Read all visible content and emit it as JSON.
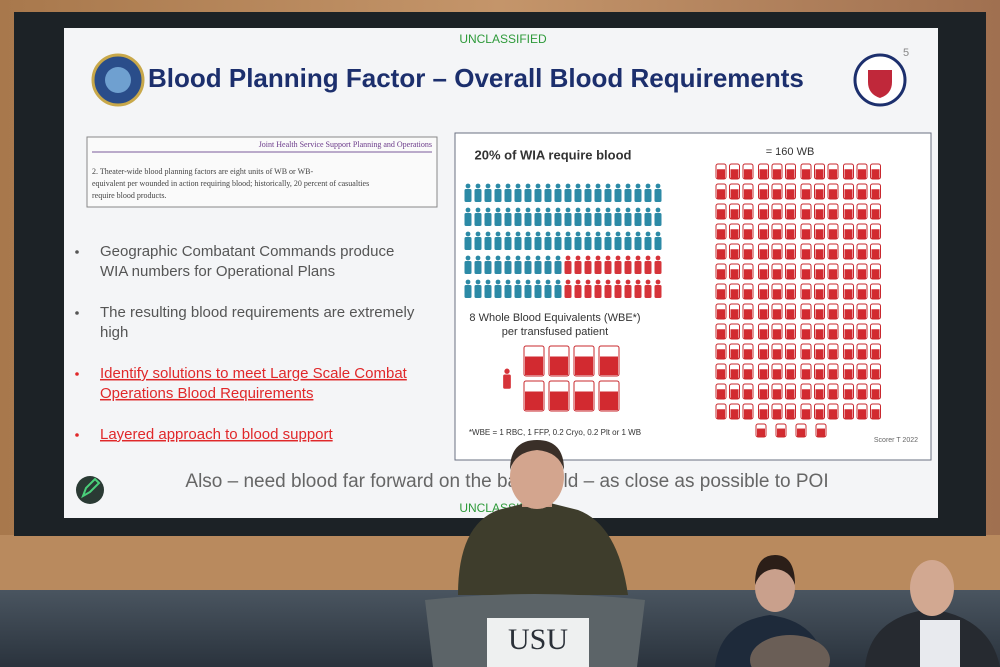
{
  "slide": {
    "classification_top": "UNCLASSIFIED",
    "page_number": "5",
    "title": "Blood Planning Factor – Overall Blood Requirements",
    "excerpt": {
      "header": "Joint Health Service Support Planning and Operations",
      "lines": [
        "2. Theater-wide blood planning factors are eight units of WB or WB-",
        "equivalent per wounded in action requiring blood; historically, 20 percent of casualties",
        "require blood products."
      ]
    },
    "bullets": [
      {
        "lines": [
          "Geographic Combatant Commands produce",
          "WIA numbers for Operational Plans"
        ],
        "color": "#555555"
      },
      {
        "lines": [
          "The resulting blood requirements are extremely",
          "high"
        ],
        "color": "#555555"
      },
      {
        "lines": [
          "Identify solutions to meet Large Scale Combat",
          "Operations Blood Requirements"
        ],
        "color": "#e0282a"
      },
      {
        "lines": [
          "Layered approach to blood support"
        ],
        "color": "#e0282a"
      }
    ],
    "infographic": {
      "wia_heading": "20% of WIA require blood",
      "total_heading": "= 160 WB",
      "wbe_lines": [
        "8 Whole Blood Equivalents (WBE*)",
        "per transfused patient"
      ],
      "wbe_note": "*WBE = 1 RBC, 1 FFP, 0.2 Cryo, 0.2 Plt or 1 WB",
      "source": "Scorer T 2022"
    },
    "footer": "Also – need blood far forward on the battlefield – as close as possible to POI",
    "classification_bottom": "UNCLASSIFIED"
  },
  "podium": "USU"
}
